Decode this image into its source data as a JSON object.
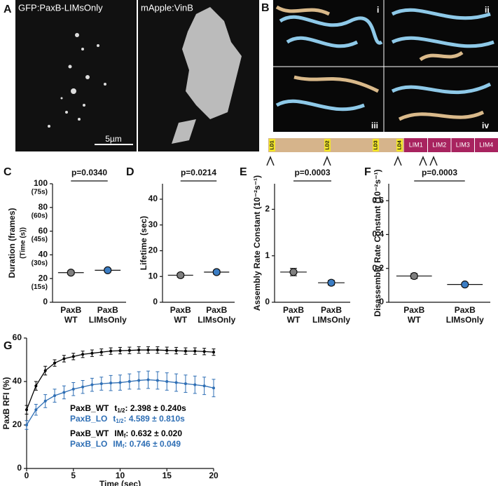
{
  "panel_labels": [
    "A",
    "B",
    "C",
    "D",
    "E",
    "F",
    "G"
  ],
  "panel_a": {
    "channels": [
      "GFP:PaxB-LIMsOnly",
      "mApple:VinB"
    ],
    "scale_bar": "5µm"
  },
  "panel_b": {
    "views": [
      "i",
      "ii",
      "iii",
      "iv"
    ],
    "ld_domains": [
      "LD1",
      "LD2",
      "LD3",
      "LD4"
    ],
    "lim_domains": [
      "LIM1",
      "LIM2",
      "LIM3",
      "LIM4"
    ]
  },
  "chart_data": [
    {
      "type": "dot",
      "ylabel": "Duration (frames)",
      "ylabel2": "(Time (s))",
      "categories": [
        [
          "PaxB",
          "WT"
        ],
        [
          "PaxB",
          "LIMsOnly"
        ]
      ],
      "values": [
        25,
        27
      ],
      "errors": [
        1.5,
        1.5
      ],
      "colors": [
        "#7f7f7f",
        "#3b7dc4"
      ],
      "ylim": [
        0,
        100
      ],
      "yticks": [
        0,
        20,
        40,
        60,
        80,
        100
      ],
      "y2ticks": [
        {
          "value": 20,
          "label": "(15s)"
        },
        {
          "value": 40,
          "label": "(30s)"
        },
        {
          "value": 60,
          "label": "(45s)"
        },
        {
          "value": 80,
          "label": "(60s)"
        },
        {
          "value": 100,
          "label": "(75s)"
        }
      ],
      "annotation": "p=0.0340"
    },
    {
      "type": "dot",
      "ylabel": "Lifetime (sec)",
      "categories": [
        [
          "PaxB",
          "WT"
        ],
        [
          "PaxB",
          "LIMsOnly"
        ]
      ],
      "values": [
        10.5,
        11.7
      ],
      "errors": [
        0.8,
        0.8
      ],
      "colors": [
        "#7f7f7f",
        "#3b7dc4"
      ],
      "ylim": [
        0,
        46
      ],
      "yticks": [
        0,
        10,
        20,
        30,
        40
      ],
      "annotation": "p=0.0214"
    },
    {
      "type": "dot",
      "ylabel": "Assembly Rate Constant (10⁻²s⁻¹)",
      "categories": [
        [
          "PaxB",
          "WT"
        ],
        [
          "PaxB",
          "LIMsOnly"
        ]
      ],
      "values": [
        0.65,
        0.42
      ],
      "errors": [
        0.08,
        0.05
      ],
      "colors": [
        "#7f7f7f",
        "#3b7dc4"
      ],
      "ylim": [
        0,
        2.55
      ],
      "yticks": [
        0,
        1,
        2
      ],
      "annotation": "p=0.0003"
    },
    {
      "type": "dot",
      "ylabel": "Disassembly Rate Constant (10⁻²s⁻¹)",
      "categories": [
        [
          "PaxB",
          "WT"
        ],
        [
          "PaxB",
          "LIMsOnly"
        ]
      ],
      "values": [
        0.155,
        0.105
      ],
      "errors": [
        0.015,
        0.01
      ],
      "colors": [
        "#7f7f7f",
        "#3b7dc4"
      ],
      "ylim": [
        0,
        0.7
      ],
      "yticks": [
        0,
        0.2,
        0.4,
        0.6
      ],
      "annotation": "p=0.0003"
    },
    {
      "type": "line",
      "ylabel": "PaxB RFI (%)",
      "xlabel": "Time (sec)",
      "x": [
        0,
        1,
        2,
        3,
        4,
        5,
        6,
        7,
        8,
        9,
        10,
        11,
        12,
        13,
        14,
        15,
        16,
        17,
        18,
        19,
        20
      ],
      "xlim": [
        0,
        20
      ],
      "ylim": [
        0,
        60
      ],
      "xticks": [
        0,
        5,
        10,
        15,
        20
      ],
      "yticks": [
        0,
        20,
        40,
        60
      ],
      "series": [
        {
          "name": "PaxB_WT",
          "color": "#000000",
          "values": [
            27,
            38,
            45,
            48.5,
            50.5,
            51.5,
            52.5,
            53,
            53.5,
            54,
            54.2,
            54.3,
            54.5,
            54.5,
            54.5,
            54.3,
            54.2,
            54,
            54,
            53.8,
            53.5
          ],
          "errors": [
            2,
            2,
            2,
            1.5,
            1.5,
            1.5,
            1.5,
            1.5,
            1.5,
            1.5,
            1.5,
            1.5,
            1.5,
            1.5,
            1.5,
            1.5,
            1.5,
            1.5,
            1.5,
            1.5,
            1.5
          ],
          "fits": [
            {
              "param": "t",
              "sub": "1/2",
              "text": ": 2.398 ± 0.240s"
            },
            {
              "param": "IM",
              "sub": "f",
              "text": ": 0.632 ± 0.020"
            }
          ]
        },
        {
          "name": "PaxB_LO",
          "color": "#2f6fb5",
          "values": [
            20,
            27,
            31,
            33.5,
            35,
            36.5,
            37.5,
            38.5,
            39,
            39.3,
            39.5,
            40,
            40.5,
            40.8,
            40.5,
            40,
            39.5,
            39,
            38.5,
            38,
            37
          ],
          "errors": [
            2,
            2.5,
            3,
            3,
            3,
            3,
            3,
            3,
            3,
            3.5,
            3.5,
            3.5,
            4,
            4,
            4,
            4,
            4,
            4,
            4,
            4,
            4
          ],
          "fits": [
            {
              "param": "t",
              "sub": "1/2",
              "text": ": 4.589 ± 0.810s"
            },
            {
              "param": "IM",
              "sub": "f",
              "text": ": 0.746 ± 0.049"
            }
          ]
        }
      ]
    }
  ]
}
